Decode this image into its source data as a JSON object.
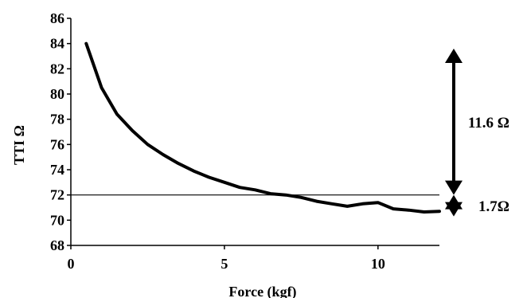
{
  "chart_data": {
    "type": "line",
    "xlabel": "Force (kgf)",
    "ylabel": "TTI Ω",
    "xlim": [
      0,
      12
    ],
    "ylim": [
      68,
      86
    ],
    "xticks": [
      0,
      5,
      10
    ],
    "yticks": [
      68,
      70,
      72,
      74,
      76,
      78,
      80,
      82,
      84,
      86
    ],
    "grid": false,
    "series": [
      {
        "x": [
          0.5,
          1,
          1.5,
          2,
          2.5,
          3,
          3.5,
          4,
          4.5,
          5,
          5.5,
          6,
          6.5,
          7,
          7.5,
          8,
          8.5,
          9,
          9.5,
          10,
          10.5,
          11,
          11.5,
          12
        ],
        "y": [
          84.0,
          80.5,
          78.4,
          77.1,
          76.0,
          75.2,
          74.5,
          73.9,
          73.4,
          73.0,
          72.6,
          72.4,
          72.1,
          72.0,
          71.8,
          71.5,
          71.3,
          71.1,
          71.3,
          71.4,
          70.9,
          70.8,
          70.65,
          70.7
        ],
        "color": "#000000"
      }
    ],
    "reference_line": {
      "y": 72
    },
    "annotations": [
      {
        "label": "11.6 Ω",
        "from": 72,
        "to": 83.6
      },
      {
        "label": "1.7Ω",
        "from": 70.3,
        "to": 72
      }
    ]
  }
}
